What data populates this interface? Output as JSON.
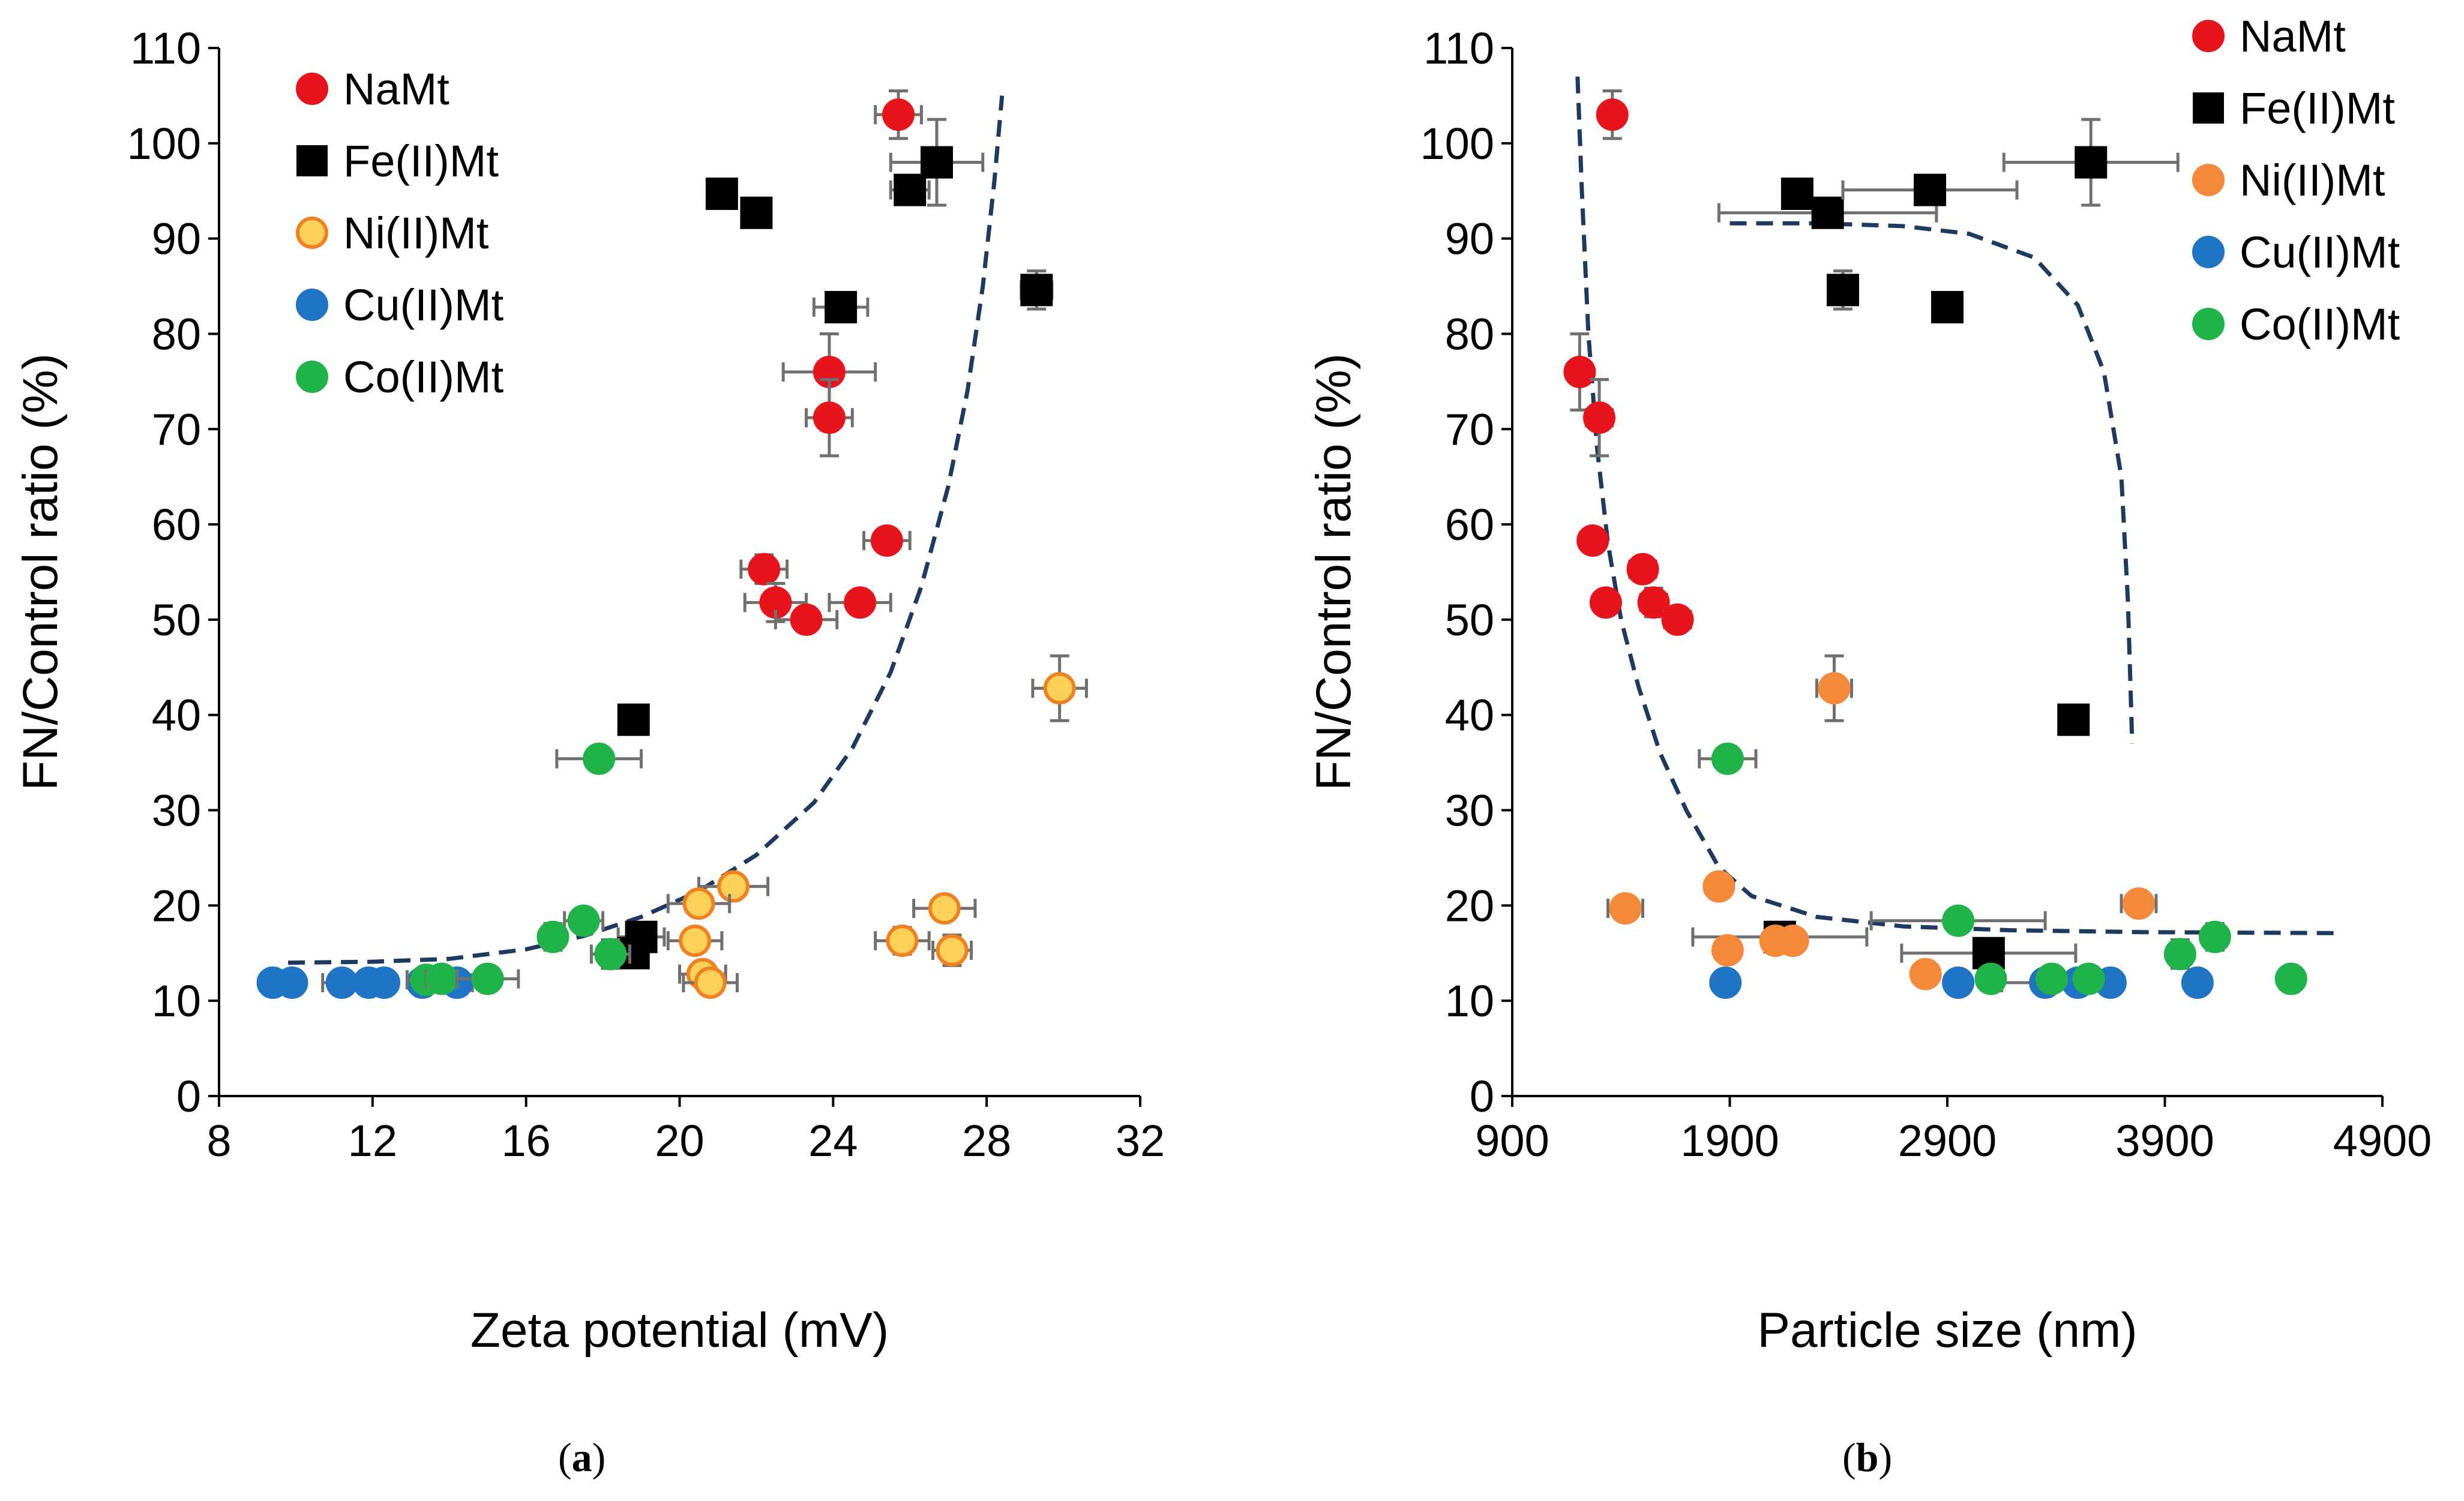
{
  "chart_data": [
    {
      "type": "scatter",
      "panel_label": "(a)",
      "panel_letter": "a",
      "xlabel": "Zeta potential (mV)",
      "ylabel": "FN/Control ratio (%)",
      "xlim": [
        8,
        32
      ],
      "ylim": [
        0,
        110
      ],
      "xticks": [
        "8",
        "12",
        "16",
        "20",
        "24",
        "28",
        "32"
      ],
      "yticks": [
        "0",
        "10",
        "20",
        "30",
        "40",
        "50",
        "60",
        "70",
        "80",
        "90",
        "100",
        "110"
      ],
      "legend": [
        "NaMt",
        "Fe(II)Mt",
        "Ni(II)Mt",
        "Cu(II)Mt",
        "Co(II)Mt"
      ],
      "legend_position": "top-left",
      "fit_curve": {
        "style": "dashed",
        "color": "#1f3a5f",
        "points": [
          [
            9.8,
            14
          ],
          [
            12,
            14.1
          ],
          [
            14,
            14.4
          ],
          [
            16,
            15.4
          ],
          [
            17.5,
            16.8
          ],
          [
            19,
            18.8
          ],
          [
            20.5,
            21.5
          ],
          [
            22,
            25.3
          ],
          [
            23.5,
            30.8
          ],
          [
            24.5,
            36.5
          ],
          [
            25.5,
            44.5
          ],
          [
            26.3,
            53.5
          ],
          [
            27,
            64
          ],
          [
            27.5,
            74
          ],
          [
            27.9,
            85
          ],
          [
            28.2,
            96
          ],
          [
            28.4,
            105
          ]
        ]
      },
      "series": [
        {
          "name": "NaMt",
          "marker": "circle",
          "color": "#e8141c",
          "edge": "#e8141c",
          "points": [
            {
              "x": 25.7,
              "y": 103,
              "xerr": 0.6,
              "yerr": 2.5
            },
            {
              "x": 23.9,
              "y": 76,
              "xerr": 1.2,
              "yerr": 4
            },
            {
              "x": 23.9,
              "y": 71.2,
              "xerr": 0.6,
              "yerr": 4
            },
            {
              "x": 25.4,
              "y": 58.3,
              "xerr": 0.6,
              "yerr": 1
            },
            {
              "x": 22.2,
              "y": 55.3,
              "xerr": 0.6,
              "yerr": 1.5
            },
            {
              "x": 22.5,
              "y": 51.8,
              "xerr": 0.8,
              "yerr": 2
            },
            {
              "x": 24.7,
              "y": 51.8,
              "xerr": 0.8,
              "yerr": 0.8
            },
            {
              "x": 23.3,
              "y": 50,
              "xerr": 0.8,
              "yerr": 1.2
            }
          ]
        },
        {
          "name": "Fe(II)Mt",
          "marker": "square",
          "color": "#000000",
          "edge": "#000000",
          "points": [
            {
              "x": 26.7,
              "y": 98,
              "xerr": 1.2,
              "yerr": 4.5
            },
            {
              "x": 21.1,
              "y": 94.7,
              "xerr": 0,
              "yerr": 0
            },
            {
              "x": 22.0,
              "y": 92.7,
              "xerr": 0,
              "yerr": 0
            },
            {
              "x": 26.0,
              "y": 95.1,
              "xerr": 0.5,
              "yerr": 1
            },
            {
              "x": 29.3,
              "y": 84.6,
              "xerr": 0.4,
              "yerr": 2
            },
            {
              "x": 24.2,
              "y": 82.8,
              "xerr": 0.7,
              "yerr": 0.8
            },
            {
              "x": 18.8,
              "y": 39.5,
              "xerr": 0.3,
              "yerr": 0.8
            },
            {
              "x": 19.0,
              "y": 16.7,
              "xerr": 0.6,
              "yerr": 1.2
            },
            {
              "x": 18.8,
              "y": 15,
              "xerr": 0.3,
              "yerr": 1.2
            }
          ]
        },
        {
          "name": "Ni(II)Mt",
          "marker": "circle",
          "color": "#fdd05a",
          "edge": "#f08020",
          "points": [
            {
              "x": 29.9,
              "y": 42.8,
              "xerr": 0.7,
              "yerr": 3.4
            },
            {
              "x": 21.4,
              "y": 22,
              "xerr": 0.9,
              "yerr": 0.8
            },
            {
              "x": 20.5,
              "y": 20.2,
              "xerr": 0.8,
              "yerr": 0.8
            },
            {
              "x": 26.9,
              "y": 19.7,
              "xerr": 0.8,
              "yerr": 0.6
            },
            {
              "x": 20.4,
              "y": 16.3,
              "xerr": 0.7,
              "yerr": 1.2
            },
            {
              "x": 25.8,
              "y": 16.3,
              "xerr": 0.7,
              "yerr": 1.4
            },
            {
              "x": 27.1,
              "y": 15.3,
              "xerr": 0.5,
              "yerr": 1.6
            },
            {
              "x": 20.6,
              "y": 12.8,
              "xerr": 0.6,
              "yerr": 1.2
            },
            {
              "x": 20.8,
              "y": 11.9,
              "xerr": 0.7,
              "yerr": 0.7
            }
          ]
        },
        {
          "name": "Cu(II)Mt",
          "marker": "circle",
          "color": "#1f74c4",
          "edge": "#1f74c4",
          "points": [
            {
              "x": 9.4,
              "y": 11.9,
              "xerr": 0,
              "yerr": 0
            },
            {
              "x": 9.9,
              "y": 11.9,
              "xerr": 0,
              "yerr": 0
            },
            {
              "x": 11.2,
              "y": 11.9,
              "xerr": 0.5,
              "yerr": 0
            },
            {
              "x": 11.9,
              "y": 11.9,
              "xerr": 0,
              "yerr": 0
            },
            {
              "x": 12.3,
              "y": 11.9,
              "xerr": 0,
              "yerr": 0
            },
            {
              "x": 13.3,
              "y": 11.9,
              "xerr": 0,
              "yerr": 0
            },
            {
              "x": 14.2,
              "y": 11.9,
              "xerr": 0.4,
              "yerr": 0
            }
          ]
        },
        {
          "name": "Co(II)Mt",
          "marker": "circle",
          "color": "#20b34a",
          "edge": "#20b34a",
          "points": [
            {
              "x": 17.9,
              "y": 35.4,
              "xerr": 1.1,
              "yerr": 0
            },
            {
              "x": 17.5,
              "y": 18.4,
              "xerr": 0.5,
              "yerr": 1
            },
            {
              "x": 16.7,
              "y": 16.7,
              "xerr": 0.3,
              "yerr": 1.4
            },
            {
              "x": 18.2,
              "y": 14.9,
              "xerr": 0.5,
              "yerr": 1.5
            },
            {
              "x": 13.4,
              "y": 12.2,
              "xerr": 0.5,
              "yerr": 0.5
            },
            {
              "x": 13.8,
              "y": 12.3,
              "xerr": 0.4,
              "yerr": 0
            },
            {
              "x": 15.0,
              "y": 12.3,
              "xerr": 0.8,
              "yerr": 0.5
            }
          ]
        }
      ]
    },
    {
      "type": "scatter",
      "panel_label": "(b)",
      "panel_letter": "b",
      "xlabel": "Particle size (nm)",
      "ylabel": "FN/Control ratio (%)",
      "xlim": [
        900,
        4900
      ],
      "ylim": [
        0,
        110
      ],
      "xticks": [
        "900",
        "1900",
        "2900",
        "3900",
        "4900"
      ],
      "yticks": [
        "0",
        "10",
        "20",
        "30",
        "40",
        "50",
        "60",
        "70",
        "80",
        "90",
        "100",
        "110"
      ],
      "legend": [
        "NaMt",
        "Fe(II)Mt",
        "Ni(II)Mt",
        "Cu(II)Mt",
        "Co(II)Mt"
      ],
      "legend_position": "top-right",
      "fit_curves": [
        {
          "style": "dashed",
          "color": "#1f3a5f",
          "points": [
            [
              1200,
              107
            ],
            [
              1220,
              95
            ],
            [
              1250,
              80
            ],
            [
              1290,
              68
            ],
            [
              1340,
              58
            ],
            [
              1400,
              50
            ],
            [
              1480,
              43
            ],
            [
              1580,
              36
            ],
            [
              1700,
              30
            ],
            [
              1850,
              24
            ],
            [
              2000,
              21
            ],
            [
              2300,
              18.8
            ],
            [
              2700,
              17.8
            ],
            [
              3200,
              17.4
            ],
            [
              3800,
              17.2
            ],
            [
              4700,
              17.1
            ]
          ]
        },
        {
          "style": "dashed",
          "color": "#1f3a5f",
          "points": [
            [
              1900,
              91.6
            ],
            [
              2300,
              91.6
            ],
            [
              2700,
              91.3
            ],
            [
              3000,
              90.5
            ],
            [
              3300,
              88
            ],
            [
              3500,
              83
            ],
            [
              3620,
              76
            ],
            [
              3700,
              65
            ],
            [
              3730,
              52
            ],
            [
              3750,
              37
            ]
          ]
        }
      ],
      "series": [
        {
          "name": "NaMt",
          "marker": "circle",
          "color": "#e8141c",
          "edge": "#e8141c",
          "points": [
            {
              "x": 1360,
              "y": 103,
              "xerr": 40,
              "yerr": 2.5
            },
            {
              "x": 1210,
              "y": 76,
              "xerr": 40,
              "yerr": 4
            },
            {
              "x": 1300,
              "y": 71.2,
              "xerr": 60,
              "yerr": 4
            },
            {
              "x": 1270,
              "y": 58.3,
              "xerr": 0,
              "yerr": 0
            },
            {
              "x": 1500,
              "y": 55.3,
              "xerr": 60,
              "yerr": 0
            },
            {
              "x": 1330,
              "y": 51.8,
              "xerr": 0,
              "yerr": 0
            },
            {
              "x": 1550,
              "y": 51.8,
              "xerr": 60,
              "yerr": 1.5
            },
            {
              "x": 1660,
              "y": 50,
              "xerr": 60,
              "yerr": 0
            }
          ]
        },
        {
          "name": "Fe(II)Mt",
          "marker": "square",
          "color": "#000000",
          "edge": "#000000",
          "points": [
            {
              "x": 3560,
              "y": 98,
              "xerr": 400,
              "yerr": 4.5
            },
            {
              "x": 2210,
              "y": 94.7,
              "xerr": 60,
              "yerr": 0
            },
            {
              "x": 2350,
              "y": 92.7,
              "xerr": 500,
              "yerr": 0
            },
            {
              "x": 2820,
              "y": 95.1,
              "xerr": 400,
              "yerr": 0
            },
            {
              "x": 2420,
              "y": 84.6,
              "xerr": 0,
              "yerr": 2
            },
            {
              "x": 2900,
              "y": 82.8,
              "xerr": 0,
              "yerr": 0
            },
            {
              "x": 3480,
              "y": 39.5,
              "xerr": 0,
              "yerr": 0
            },
            {
              "x": 2130,
              "y": 16.7,
              "xerr": 400,
              "yerr": 0
            },
            {
              "x": 3090,
              "y": 15,
              "xerr": 400,
              "yerr": 0
            }
          ]
        },
        {
          "name": "Ni(II)Mt",
          "marker": "circle",
          "color": "#f5893a",
          "edge": "#f5893a",
          "points": [
            {
              "x": 2380,
              "y": 42.8,
              "xerr": 80,
              "yerr": 3.4
            },
            {
              "x": 1850,
              "y": 22,
              "xerr": 0,
              "yerr": 0
            },
            {
              "x": 1420,
              "y": 19.7,
              "xerr": 80,
              "yerr": 0
            },
            {
              "x": 3780,
              "y": 20.2,
              "xerr": 80,
              "yerr": 0
            },
            {
              "x": 2190,
              "y": 16.3,
              "xerr": 0,
              "yerr": 0
            },
            {
              "x": 2110,
              "y": 16.3,
              "xerr": 0,
              "yerr": 0
            },
            {
              "x": 1890,
              "y": 15.3,
              "xerr": 0,
              "yerr": 0
            },
            {
              "x": 2800,
              "y": 12.8,
              "xerr": 0,
              "yerr": 0
            }
          ]
        },
        {
          "name": "Cu(II)Mt",
          "marker": "circle",
          "color": "#1f74c4",
          "edge": "#1f74c4",
          "points": [
            {
              "x": 1880,
              "y": 11.9,
              "xerr": 0,
              "yerr": 0
            },
            {
              "x": 2950,
              "y": 11.9,
              "xerr": 0,
              "yerr": 0
            },
            {
              "x": 3350,
              "y": 11.9,
              "xerr": 200,
              "yerr": 0
            },
            {
              "x": 3500,
              "y": 11.9,
              "xerr": 0,
              "yerr": 0
            },
            {
              "x": 3650,
              "y": 11.9,
              "xerr": 0,
              "yerr": 0
            },
            {
              "x": 4050,
              "y": 11.9,
              "xerr": 0,
              "yerr": 0
            }
          ]
        },
        {
          "name": "Co(II)Mt",
          "marker": "circle",
          "color": "#20b34a",
          "edge": "#20b34a",
          "points": [
            {
              "x": 1890,
              "y": 35.4,
              "xerr": 130,
              "yerr": 0
            },
            {
              "x": 2950,
              "y": 18.4,
              "xerr": 400,
              "yerr": 0
            },
            {
              "x": 4130,
              "y": 16.7,
              "xerr": 0,
              "yerr": 1.4
            },
            {
              "x": 3970,
              "y": 14.9,
              "xerr": 0,
              "yerr": 1.5
            },
            {
              "x": 3100,
              "y": 12.3,
              "xerr": 0,
              "yerr": 0
            },
            {
              "x": 3380,
              "y": 12.3,
              "xerr": 0,
              "yerr": 0
            },
            {
              "x": 3550,
              "y": 12.3,
              "xerr": 0,
              "yerr": 0
            },
            {
              "x": 4480,
              "y": 12.3,
              "xerr": 0,
              "yerr": 0
            }
          ]
        }
      ]
    }
  ]
}
